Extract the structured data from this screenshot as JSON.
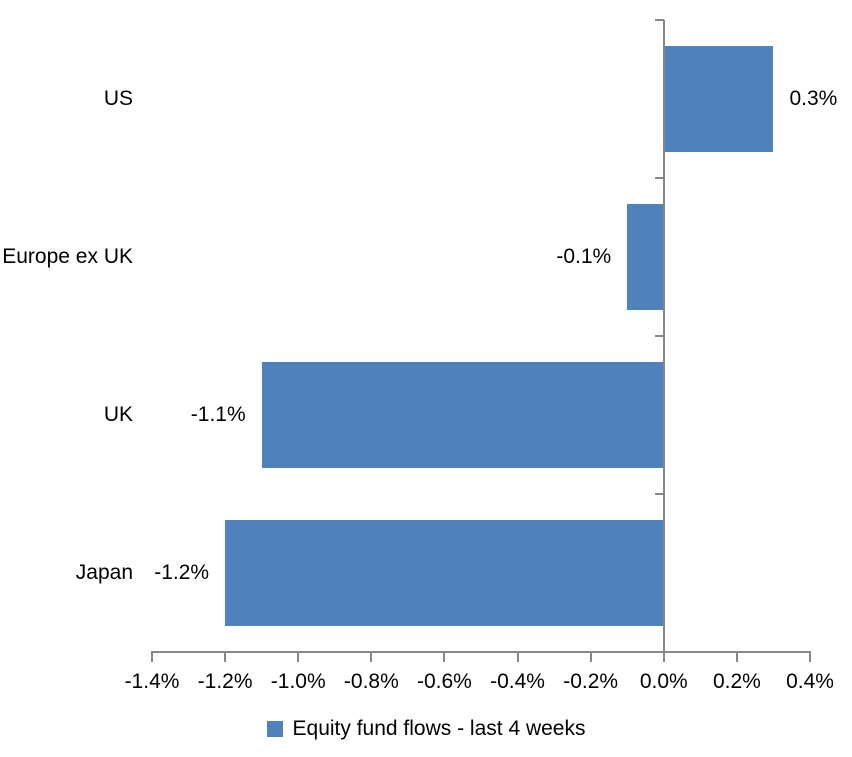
{
  "chart_data": {
    "type": "bar",
    "orientation": "horizontal",
    "title": "",
    "categories": [
      "US",
      "Europe ex UK",
      "UK",
      "Japan"
    ],
    "series": [
      {
        "name": "Equity fund flows - last 4 weeks",
        "values": [
          0.3,
          -0.1,
          -1.1,
          -1.2
        ],
        "data_labels": [
          "0.3%",
          "-0.1%",
          "-1.1%",
          "-1.2%"
        ]
      }
    ],
    "x_axis": {
      "min": -1.4,
      "max": 0.4,
      "step": 0.2,
      "tick_labels": [
        "-1.4%",
        "-1.2%",
        "-1.0%",
        "-0.8%",
        "-0.6%",
        "-0.4%",
        "-0.2%",
        "0.0%",
        "0.2%",
        "0.4%"
      ],
      "format": "percent"
    },
    "grid": false,
    "legend": {
      "position": "bottom-center",
      "entries": [
        "Equity fund flows - last 4 weeks"
      ]
    },
    "colors": {
      "bar": "#4F81BD",
      "axis": "#878787",
      "text": "#000000",
      "background": "#FFFFFF"
    }
  }
}
